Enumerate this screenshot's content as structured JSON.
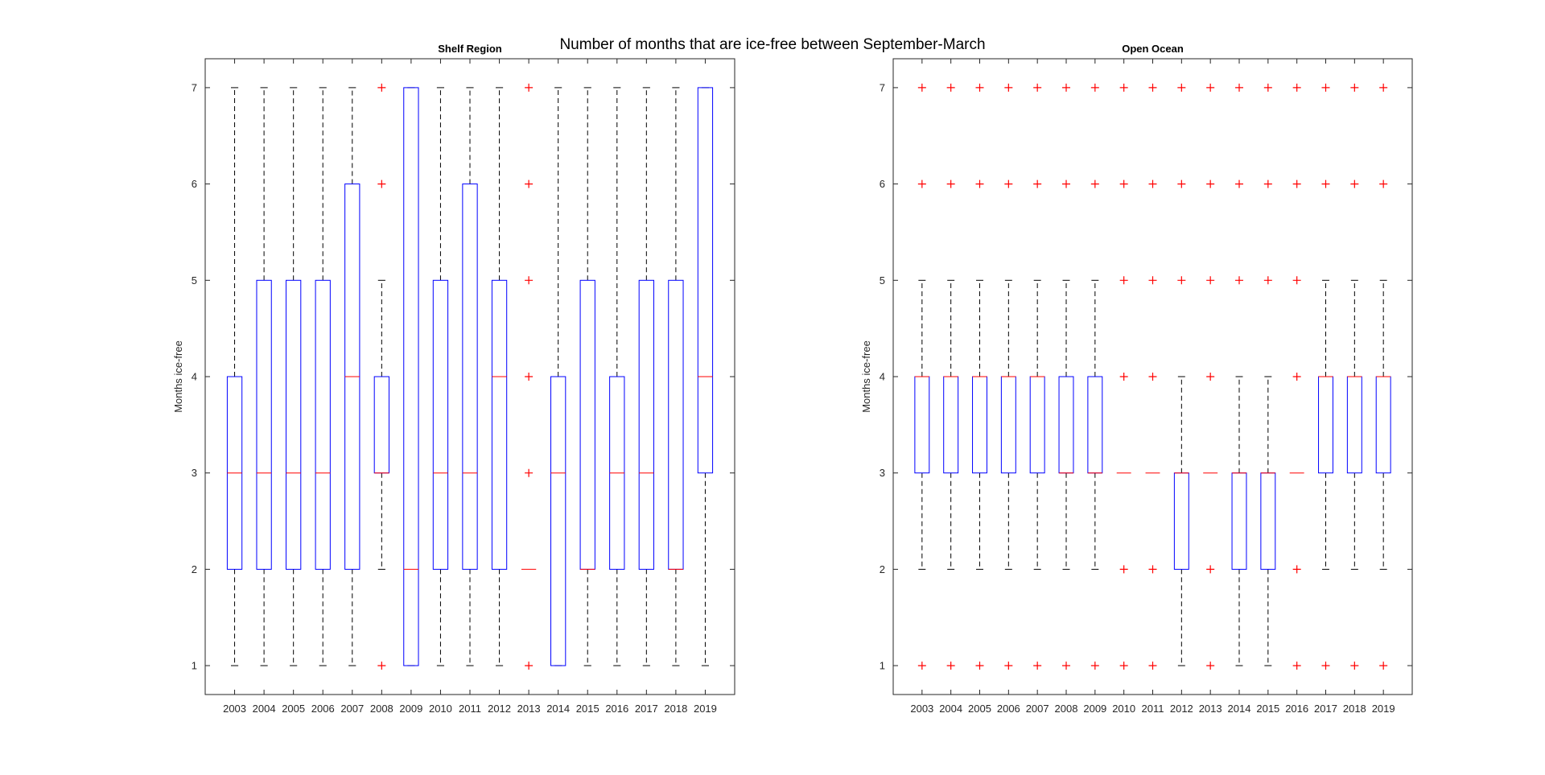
{
  "suptitle": "Number of months that are ice-free between September-March",
  "colors": {
    "box": "#0000ff",
    "median": "#ff0000",
    "whisker": "#000000",
    "outlier": "#ff0000",
    "axis": "#262626"
  },
  "chart_data": [
    {
      "type": "box",
      "title": "Shelf Region",
      "ylabel": "Months ice-free",
      "xlabel": "",
      "ylim": [
        0.7,
        7.3
      ],
      "yticks": [
        1,
        2,
        3,
        4,
        5,
        6,
        7
      ],
      "grid": false,
      "categories": [
        "2003",
        "2004",
        "2005",
        "2006",
        "2007",
        "2008",
        "2009",
        "2010",
        "2011",
        "2012",
        "2013",
        "2014",
        "2015",
        "2016",
        "2017",
        "2018",
        "2019"
      ],
      "boxes": [
        {
          "q1": 2,
          "median": 3,
          "q3": 4,
          "whisker_low": 1,
          "whisker_high": 7,
          "outliers": []
        },
        {
          "q1": 2,
          "median": 3,
          "q3": 5,
          "whisker_low": 1,
          "whisker_high": 7,
          "outliers": []
        },
        {
          "q1": 2,
          "median": 3,
          "q3": 5,
          "whisker_low": 1,
          "whisker_high": 7,
          "outliers": []
        },
        {
          "q1": 2,
          "median": 3,
          "q3": 5,
          "whisker_low": 1,
          "whisker_high": 7,
          "outliers": []
        },
        {
          "q1": 2,
          "median": 4,
          "q3": 6,
          "whisker_low": 1,
          "whisker_high": 7,
          "outliers": []
        },
        {
          "q1": 3,
          "median": 3,
          "q3": 4,
          "whisker_low": 2,
          "whisker_high": 5,
          "outliers": [
            1,
            6,
            7
          ]
        },
        {
          "q1": 1,
          "median": 2,
          "q3": 7,
          "whisker_low": 1,
          "whisker_high": 7,
          "outliers": []
        },
        {
          "q1": 2,
          "median": 3,
          "q3": 5,
          "whisker_low": 1,
          "whisker_high": 7,
          "outliers": []
        },
        {
          "q1": 2,
          "median": 3,
          "q3": 6,
          "whisker_low": 1,
          "whisker_high": 7,
          "outliers": []
        },
        {
          "q1": 2,
          "median": 4,
          "q3": 5,
          "whisker_low": 1,
          "whisker_high": 7,
          "outliers": []
        },
        {
          "q1": 2,
          "median": 2,
          "q3": 2,
          "whisker_low": 2,
          "whisker_high": 2,
          "outliers": [
            1,
            3,
            4,
            5,
            6,
            7
          ]
        },
        {
          "q1": 1,
          "median": 3,
          "q3": 4,
          "whisker_low": 1,
          "whisker_high": 7,
          "outliers": []
        },
        {
          "q1": 2,
          "median": 2,
          "q3": 5,
          "whisker_low": 1,
          "whisker_high": 7,
          "outliers": []
        },
        {
          "q1": 2,
          "median": 3,
          "q3": 4,
          "whisker_low": 1,
          "whisker_high": 7,
          "outliers": []
        },
        {
          "q1": 2,
          "median": 3,
          "q3": 5,
          "whisker_low": 1,
          "whisker_high": 7,
          "outliers": []
        },
        {
          "q1": 2,
          "median": 2,
          "q3": 5,
          "whisker_low": 1,
          "whisker_high": 7,
          "outliers": []
        },
        {
          "q1": 3,
          "median": 4,
          "q3": 7,
          "whisker_low": 1,
          "whisker_high": 7,
          "outliers": []
        }
      ]
    },
    {
      "type": "box",
      "title": "Open Ocean",
      "ylabel": "Months ice-free",
      "xlabel": "",
      "ylim": [
        0.7,
        7.3
      ],
      "yticks": [
        1,
        2,
        3,
        4,
        5,
        6,
        7
      ],
      "grid": false,
      "categories": [
        "2003",
        "2004",
        "2005",
        "2006",
        "2007",
        "2008",
        "2009",
        "2010",
        "2011",
        "2012",
        "2013",
        "2014",
        "2015",
        "2016",
        "2017",
        "2018",
        "2019"
      ],
      "boxes": [
        {
          "q1": 3,
          "median": 4,
          "q3": 4,
          "whisker_low": 2,
          "whisker_high": 5,
          "outliers": [
            1,
            6,
            7
          ]
        },
        {
          "q1": 3,
          "median": 4,
          "q3": 4,
          "whisker_low": 2,
          "whisker_high": 5,
          "outliers": [
            1,
            6,
            7
          ]
        },
        {
          "q1": 3,
          "median": 4,
          "q3": 4,
          "whisker_low": 2,
          "whisker_high": 5,
          "outliers": [
            1,
            6,
            7
          ]
        },
        {
          "q1": 3,
          "median": 4,
          "q3": 4,
          "whisker_low": 2,
          "whisker_high": 5,
          "outliers": [
            1,
            6,
            7
          ]
        },
        {
          "q1": 3,
          "median": 4,
          "q3": 4,
          "whisker_low": 2,
          "whisker_high": 5,
          "outliers": [
            1,
            6,
            7
          ]
        },
        {
          "q1": 3,
          "median": 3,
          "q3": 4,
          "whisker_low": 2,
          "whisker_high": 5,
          "outliers": [
            1,
            6,
            7
          ]
        },
        {
          "q1": 3,
          "median": 3,
          "q3": 4,
          "whisker_low": 2,
          "whisker_high": 5,
          "outliers": [
            1,
            6,
            7
          ]
        },
        {
          "q1": 3,
          "median": 3,
          "q3": 3,
          "whisker_low": 3,
          "whisker_high": 3,
          "outliers": [
            1,
            2,
            4,
            5,
            6,
            7
          ]
        },
        {
          "q1": 3,
          "median": 3,
          "q3": 3,
          "whisker_low": 3,
          "whisker_high": 3,
          "outliers": [
            1,
            2,
            4,
            5,
            6,
            7
          ]
        },
        {
          "q1": 2,
          "median": 3,
          "q3": 3,
          "whisker_low": 1,
          "whisker_high": 4,
          "outliers": [
            5,
            6,
            7
          ]
        },
        {
          "q1": 3,
          "median": 3,
          "q3": 3,
          "whisker_low": 3,
          "whisker_high": 3,
          "outliers": [
            1,
            2,
            4,
            5,
            6,
            7
          ]
        },
        {
          "q1": 2,
          "median": 3,
          "q3": 3,
          "whisker_low": 1,
          "whisker_high": 4,
          "outliers": [
            5,
            6,
            7
          ]
        },
        {
          "q1": 2,
          "median": 3,
          "q3": 3,
          "whisker_low": 1,
          "whisker_high": 4,
          "outliers": [
            5,
            6,
            7
          ]
        },
        {
          "q1": 3,
          "median": 3,
          "q3": 3,
          "whisker_low": 3,
          "whisker_high": 3,
          "outliers": [
            1,
            2,
            4,
            5,
            6,
            7
          ]
        },
        {
          "q1": 3,
          "median": 4,
          "q3": 4,
          "whisker_low": 2,
          "whisker_high": 5,
          "outliers": [
            1,
            6,
            7
          ]
        },
        {
          "q1": 3,
          "median": 4,
          "q3": 4,
          "whisker_low": 2,
          "whisker_high": 5,
          "outliers": [
            1,
            6,
            7
          ]
        },
        {
          "q1": 3,
          "median": 4,
          "q3": 4,
          "whisker_low": 2,
          "whisker_high": 5,
          "outliers": [
            1,
            6,
            7
          ]
        }
      ]
    }
  ]
}
